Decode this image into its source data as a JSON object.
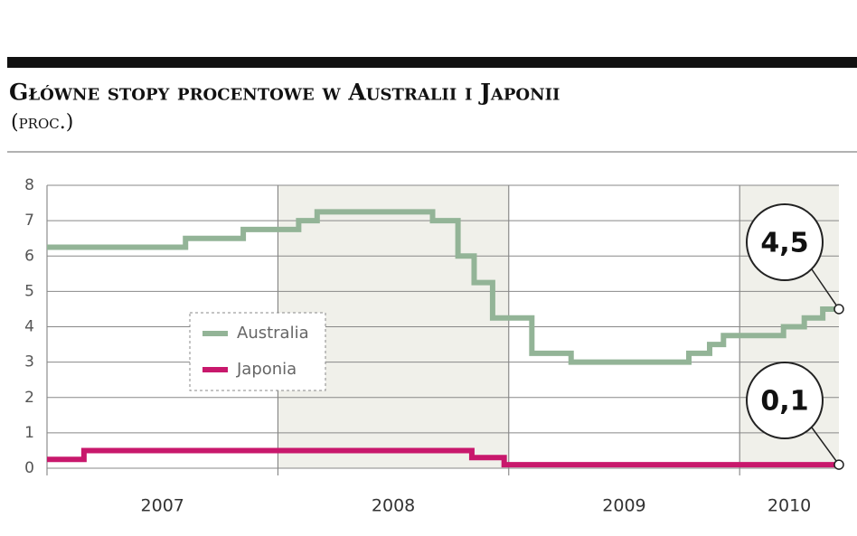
{
  "chart_data": {
    "type": "step",
    "title": "Główne stopy procentowe w Australii i Japonii",
    "subtitle": "(proc.)",
    "xlim": [
      2007,
      2010.43
    ],
    "xticks": [
      2007,
      2008,
      2009,
      2010
    ],
    "ylim": [
      0,
      8
    ],
    "yticks": [
      0,
      1,
      2,
      3,
      4,
      5,
      6,
      7,
      8
    ],
    "grid": true,
    "series": [
      {
        "name": "Australia",
        "color": "#93b497",
        "x": [
          2007,
          2007.6,
          2007.85,
          2008.09,
          2008.17,
          2008.67,
          2008.78,
          2008.85,
          2008.93,
          2009.1,
          2009.27,
          2009.78,
          2009.87,
          2009.93,
          2010.19,
          2010.28,
          2010.36,
          2010.43
        ],
        "values": [
          6.25,
          6.5,
          6.75,
          7.0,
          7.25,
          7.0,
          6.0,
          5.25,
          4.25,
          3.25,
          3.0,
          3.25,
          3.5,
          3.75,
          4.0,
          4.25,
          4.5,
          4.5
        ],
        "value_labels": [
          null,
          null,
          null,
          null,
          null,
          null,
          null,
          null,
          null,
          null,
          null,
          null,
          null,
          null,
          null,
          null,
          null,
          "4,5"
        ]
      },
      {
        "name": "Japonia",
        "color": "#c8186c",
        "x": [
          2007,
          2007.16,
          2008.84,
          2008.98,
          2010.43
        ],
        "values": [
          0.25,
          0.5,
          0.3,
          0.1,
          0.1
        ],
        "value_labels": [
          null,
          null,
          null,
          null,
          "0,1"
        ]
      }
    ]
  }
}
